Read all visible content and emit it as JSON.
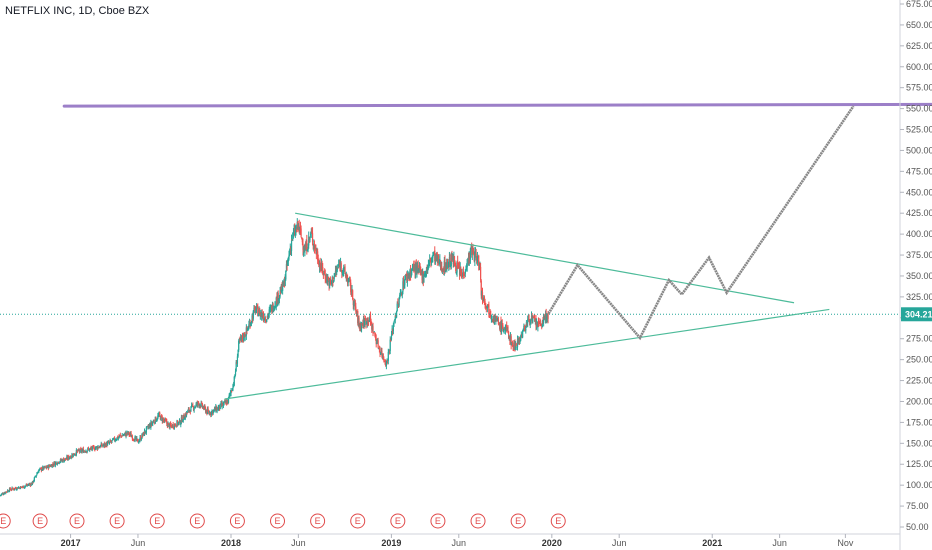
{
  "chart_data": {
    "type": "candlestick",
    "title": "NETFLIX INC, 1D, Cboe BZX",
    "y_ticks": [
      "675.00",
      "650.00",
      "625.00",
      "600.00",
      "575.00",
      "550.00",
      "525.00",
      "500.00",
      "475.00",
      "450.00",
      "425.00",
      "400.00",
      "375.00",
      "350.00",
      "325.00",
      "300.00",
      "275.00",
      "250.00",
      "225.00",
      "200.00",
      "175.00",
      "150.00",
      "125.00",
      "100.00",
      "75.00",
      "50.00"
    ],
    "ylim": [
      45,
      680
    ],
    "x_ticks": [
      {
        "label": "2017",
        "x": 2017.0,
        "major": true
      },
      {
        "label": "Jun",
        "x": 2017.42,
        "major": false
      },
      {
        "label": "2018",
        "x": 2018.0,
        "major": true
      },
      {
        "label": "Jun",
        "x": 2018.42,
        "major": false
      },
      {
        "label": "2019",
        "x": 2019.0,
        "major": true
      },
      {
        "label": "Jun",
        "x": 2019.42,
        "major": false
      },
      {
        "label": "2020",
        "x": 2020.0,
        "major": true
      },
      {
        "label": "Jun",
        "x": 2020.42,
        "major": false
      },
      {
        "label": "2021",
        "x": 2021.0,
        "major": true
      },
      {
        "label": "Jun",
        "x": 2021.42,
        "major": false
      },
      {
        "label": "Nov",
        "x": 2021.83,
        "major": false
      }
    ],
    "xlim": [
      2016.56,
      2022.37
    ],
    "current_price": {
      "label": "304.21",
      "value": 304.21
    },
    "earnings_marker": "E",
    "earnings_dates": [
      2016.58,
      2016.81,
      2017.04,
      2017.29,
      2017.54,
      2017.79,
      2018.04,
      2018.29,
      2018.54,
      2018.79,
      2019.04,
      2019.29,
      2019.54,
      2019.79,
      2020.04
    ],
    "price_path": [
      [
        2016.56,
        88
      ],
      [
        2016.62,
        95
      ],
      [
        2016.7,
        98
      ],
      [
        2016.76,
        102
      ],
      [
        2016.8,
        118
      ],
      [
        2016.86,
        122
      ],
      [
        2016.92,
        128
      ],
      [
        2016.98,
        132
      ],
      [
        2017.04,
        140
      ],
      [
        2017.1,
        142
      ],
      [
        2017.16,
        145
      ],
      [
        2017.24,
        150
      ],
      [
        2017.3,
        158
      ],
      [
        2017.36,
        162
      ],
      [
        2017.42,
        152
      ],
      [
        2017.48,
        168
      ],
      [
        2017.55,
        183
      ],
      [
        2017.62,
        170
      ],
      [
        2017.68,
        175
      ],
      [
        2017.74,
        190
      ],
      [
        2017.8,
        198
      ],
      [
        2017.86,
        186
      ],
      [
        2017.92,
        192
      ],
      [
        2017.98,
        200
      ],
      [
        2018.02,
        225
      ],
      [
        2018.05,
        270
      ],
      [
        2018.1,
        285
      ],
      [
        2018.15,
        310
      ],
      [
        2018.22,
        300
      ],
      [
        2018.28,
        320
      ],
      [
        2018.33,
        340
      ],
      [
        2018.38,
        395
      ],
      [
        2018.42,
        410
      ],
      [
        2018.46,
        380
      ],
      [
        2018.5,
        400
      ],
      [
        2018.56,
        360
      ],
      [
        2018.62,
        340
      ],
      [
        2018.68,
        365
      ],
      [
        2018.74,
        340
      ],
      [
        2018.8,
        290
      ],
      [
        2018.86,
        300
      ],
      [
        2018.92,
        265
      ],
      [
        2018.97,
        245
      ],
      [
        2019.02,
        300
      ],
      [
        2019.08,
        345
      ],
      [
        2019.14,
        360
      ],
      [
        2019.2,
        350
      ],
      [
        2019.26,
        375
      ],
      [
        2019.32,
        360
      ],
      [
        2019.38,
        370
      ],
      [
        2019.44,
        350
      ],
      [
        2019.5,
        380
      ],
      [
        2019.55,
        365
      ],
      [
        2019.56,
        330
      ],
      [
        2019.62,
        305
      ],
      [
        2019.68,
        290
      ],
      [
        2019.72,
        285
      ],
      [
        2019.76,
        265
      ],
      [
        2019.8,
        275
      ],
      [
        2019.86,
        300
      ],
      [
        2019.92,
        290
      ],
      [
        2019.98,
        305
      ]
    ],
    "projection_path": [
      [
        2019.98,
        305
      ],
      [
        2020.16,
        363
      ],
      [
        2020.55,
        276
      ],
      [
        2020.73,
        345
      ],
      [
        2020.81,
        328
      ],
      [
        2020.98,
        372
      ],
      [
        2021.09,
        330
      ],
      [
        2021.88,
        553
      ]
    ],
    "resistance_line": {
      "start": [
        2016.96,
        553
      ],
      "end": [
        2022.37,
        555
      ]
    },
    "upper_trendline": {
      "start": [
        2018.4,
        425
      ],
      "end": [
        2021.51,
        318
      ]
    },
    "lower_trendline": {
      "start": [
        2017.96,
        203
      ],
      "end": [
        2021.73,
        310
      ]
    },
    "colors": {
      "up": "#26a69a",
      "down": "#ef5350",
      "trendline": "#4dbb9a",
      "resistance": "#9c7fc8",
      "projection": "#888888",
      "price_label_bg": "#26a69a",
      "earnings": "#e04a4a"
    }
  }
}
